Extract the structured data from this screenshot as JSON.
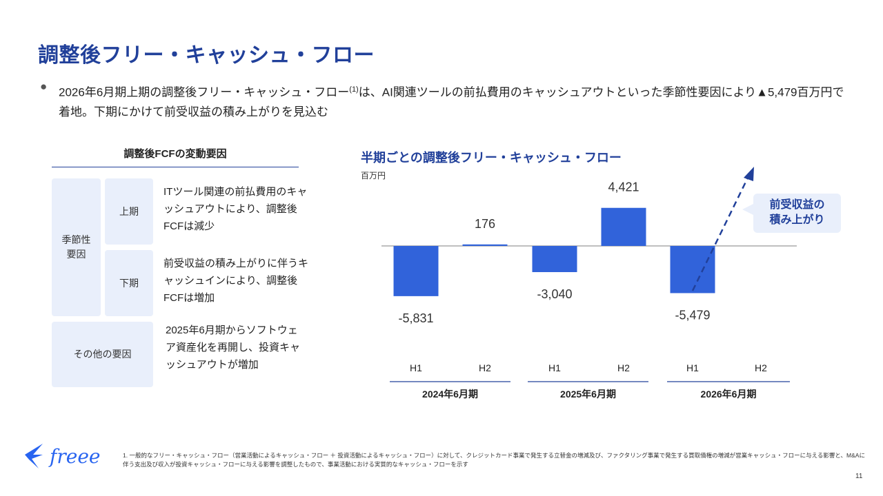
{
  "title": "調整後フリー・キャッシュ・フロー",
  "summary": {
    "bullet": "●",
    "text_before": "2026年6月期上期の調整後フリー・キャッシュ・フロー",
    "footnote_ref": "(1)",
    "text_after": "は、AI関連ツールの前払費用のキャッシュアウトといった季節性要因により▲5,479百万円で着地。下期にかけて前受収益の積み上がりを見込む"
  },
  "factors": {
    "heading": "調整後FCFの変動要因",
    "seasonal_label": "季節性要因",
    "h1_label": "上期",
    "h1_desc": "ITツール関連の前払費用のキャッシュアウトにより、調整後FCFは減少",
    "h2_label": "下期",
    "h2_desc": "前受収益の積み上がりに伴うキャッシュインにより、調整後FCFは増加",
    "other_label": "その他の要因",
    "other_desc": "2025年6月期からソフトウェア資産化を再開し、投資キャッシュアウトが増加"
  },
  "chart_data": {
    "type": "bar",
    "title": "半期ごとの調整後フリー・キャッシュ・フロー",
    "ylabel": "百万円",
    "groups": [
      "2024年6月期",
      "2025年6月期",
      "2026年6月期"
    ],
    "categories": [
      "H1",
      "H2",
      "H1",
      "H2",
      "H1",
      "H2"
    ],
    "values": [
      -5831,
      176,
      -3040,
      4421,
      -5479,
      null
    ],
    "value_labels": [
      "-5,831",
      "176",
      "-3,040",
      "4,421",
      "-5,479",
      ""
    ],
    "annotation": "前受収益の積み上がり",
    "bar_color": "#3163da"
  },
  "callout": {
    "line1": "前受収益の",
    "line2": "積み上がり"
  },
  "footnote": "1. 一般的なフリー・キャッシュ・フロー（営業活動によるキャッシュ・フロー ＋ 投資活動によるキャッシュ・フロー）に対して、クレジットカード事業で発生する立替金の増減及び、ファクタリング事業で発生する買取債権の増減が営業キャッシュ・フローに与える影響と、M&Aに伴う支出及び収入が投資キャッシュ・フローに与える影響を調整したもので、事業活動における実質的なキャッシュ・フローを示す",
  "page_number": "11",
  "logo": "freee"
}
